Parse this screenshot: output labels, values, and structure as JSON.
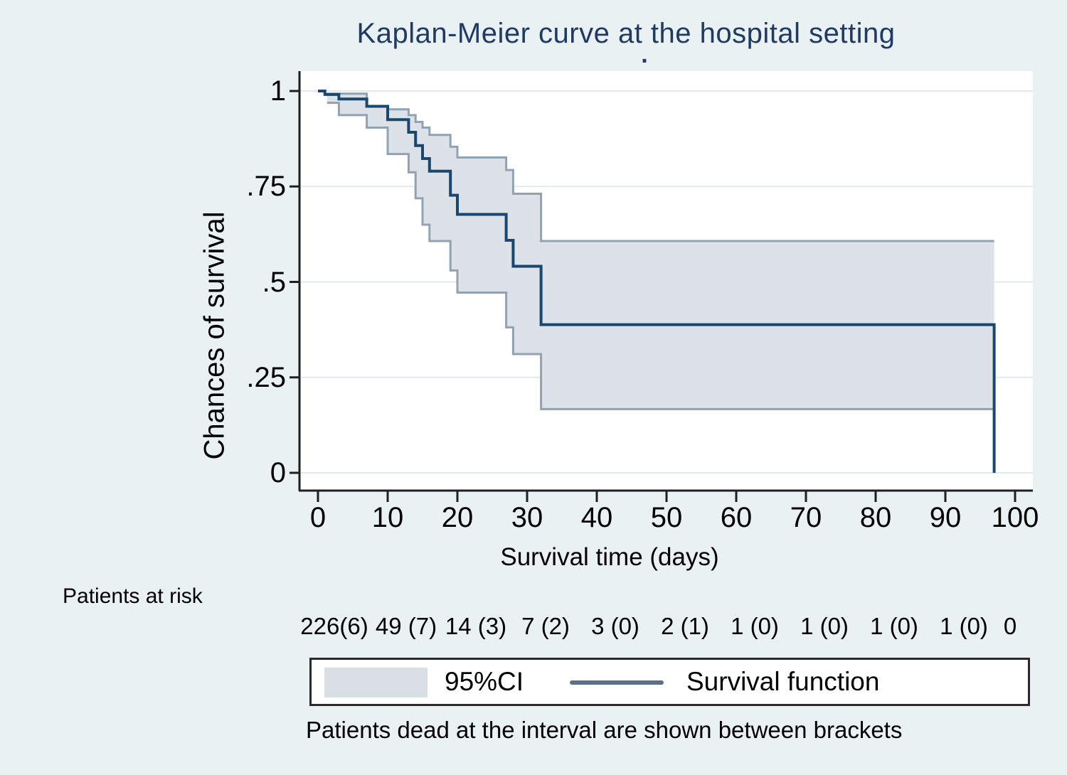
{
  "title": "Kaplan-Meier curve at the hospital setting",
  "subtitle_dot": ".",
  "y_axis": {
    "label": "Chances of survival",
    "tick_labels": [
      "1",
      ".75",
      ".5",
      ".25",
      "0"
    ],
    "tick_values": [
      1,
      0.75,
      0.5,
      0.25,
      0
    ]
  },
  "x_axis": {
    "label": "Survival time (days)",
    "tick_labels": [
      "0",
      "10",
      "20",
      "30",
      "40",
      "50",
      "60",
      "70",
      "80",
      "90",
      "100"
    ],
    "tick_values": [
      0,
      10,
      20,
      30,
      40,
      50,
      60,
      70,
      80,
      90,
      100
    ]
  },
  "risk_table": {
    "heading": "Patients at risk",
    "values": [
      "226(6)",
      "49 (7)",
      "14 (3)",
      "7 (2)",
      "3 (0)",
      "2 (1)",
      "1 (0)",
      "1 (0)",
      "1 (0)",
      "1 (0)",
      "0"
    ],
    "times": [
      0,
      10,
      20,
      30,
      40,
      50,
      60,
      70,
      80,
      90,
      100
    ]
  },
  "legend": {
    "ci_label": "95%CI",
    "line_label": "Survival function"
  },
  "note": "Patients dead at the interval are shown between brackets",
  "colors": {
    "background": "#eaf1f3",
    "plot_background": "#ffffff",
    "gridline": "#dfeaee",
    "axis": "#1f1f1f",
    "survival_line": "#1a476f",
    "ci_fill": "#dde2e8",
    "ci_edge": "#91a2b3",
    "legend_line": "#5a7187",
    "title_color": "#1f3a63"
  },
  "chart_data": {
    "type": "line",
    "subtype": "kaplan-meier-step",
    "title": "Kaplan-Meier curve at the hospital setting",
    "xlabel": "Survival time (days)",
    "ylabel": "Chances of survival",
    "xlim": [
      0,
      100
    ],
    "ylim": [
      0,
      1
    ],
    "grid": "horizontal",
    "legend_position": "bottom-box",
    "series": [
      {
        "name": "Survival function",
        "style": "step",
        "points": [
          [
            0,
            1.0
          ],
          [
            1,
            0.991
          ],
          [
            3,
            0.979
          ],
          [
            7,
            0.96
          ],
          [
            10,
            0.925
          ],
          [
            13,
            0.892
          ],
          [
            14,
            0.857
          ],
          [
            15,
            0.823
          ],
          [
            16,
            0.79
          ],
          [
            19,
            0.727
          ],
          [
            20,
            0.677
          ],
          [
            27,
            0.609
          ],
          [
            28,
            0.541
          ],
          [
            32,
            0.388
          ],
          [
            97,
            0.388
          ],
          [
            97,
            0.0
          ]
        ]
      },
      {
        "name": "95% CI upper",
        "style": "step",
        "points": [
          [
            1.3,
            0.993
          ],
          [
            7,
            0.959
          ],
          [
            10,
            0.952
          ],
          [
            13,
            0.937
          ],
          [
            14,
            0.919
          ],
          [
            15,
            0.904
          ],
          [
            16,
            0.885
          ],
          [
            19,
            0.854
          ],
          [
            20,
            0.826
          ],
          [
            27,
            0.793
          ],
          [
            28,
            0.731
          ],
          [
            32,
            0.607
          ],
          [
            97,
            0.607
          ]
        ]
      },
      {
        "name": "95% CI lower",
        "style": "step",
        "points": [
          [
            1.3,
            0.969
          ],
          [
            3,
            0.937
          ],
          [
            7,
            0.904
          ],
          [
            10,
            0.835
          ],
          [
            13,
            0.787
          ],
          [
            14,
            0.719
          ],
          [
            15,
            0.65
          ],
          [
            16,
            0.607
          ],
          [
            19,
            0.53
          ],
          [
            20,
            0.472
          ],
          [
            27,
            0.381
          ],
          [
            28,
            0.311
          ],
          [
            32,
            0.167
          ],
          [
            97,
            0.167
          ]
        ]
      }
    ],
    "at_risk": {
      "times": [
        0,
        10,
        20,
        30,
        40,
        50,
        60,
        70,
        80,
        90,
        100
      ],
      "labels": [
        "226(6)",
        "49 (7)",
        "14 (3)",
        "7 (2)",
        "3 (0)",
        "2 (1)",
        "1 (0)",
        "1 (0)",
        "1 (0)",
        "1 (0)",
        "0"
      ]
    }
  }
}
